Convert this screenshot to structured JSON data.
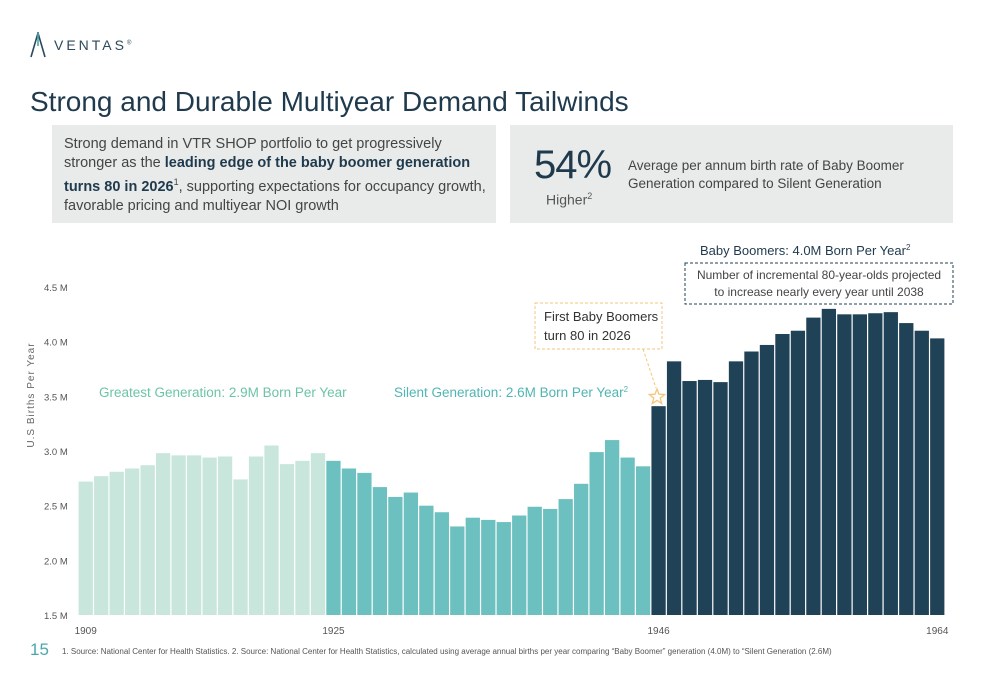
{
  "header": {
    "logo_text": "VENTAS",
    "logo_trademark": "®",
    "title": "Strong and Durable Multiyear Demand Tailwinds"
  },
  "left_box": {
    "text_1": "Strong demand in VTR SHOP portfolio to get progressively stronger as the ",
    "bold": "leading edge of the baby boomer generation turns 80 in 2026",
    "sup": "1",
    "text_2": ", supporting expectations for occupancy growth, favorable pricing and multiyear NOI growth"
  },
  "right_box": {
    "pct": "54%",
    "higher": "Higher",
    "higher_sup": "2",
    "desc": "Average per annum birth rate of Baby Boomer Generation compared to Silent Generation"
  },
  "colors": {
    "greatest": "#c8e6dc",
    "silent": "#6cc0bf",
    "boomers": "#1f4257",
    "greatest_label": "#6cc4a8",
    "silent_label": "#4fb6b3",
    "annotation_border": "#f5c67a",
    "dashed_border": "#1f4257"
  },
  "chart_data": {
    "type": "bar",
    "ylabel": "U.S Births Per Year",
    "ylim": [
      1.5,
      4.5
    ],
    "y_ticks": [
      "1.5 M",
      "2.0 M",
      "2.5 M",
      "3.0 M",
      "3.5 M",
      "4.0 M",
      "4.5 M"
    ],
    "x_tick_labels": [
      "1909",
      "1925",
      "1946",
      "1964"
    ],
    "x": [
      1909,
      1910,
      1911,
      1912,
      1913,
      1914,
      1915,
      1916,
      1917,
      1918,
      1919,
      1920,
      1921,
      1922,
      1923,
      1924,
      1925,
      1926,
      1927,
      1928,
      1929,
      1930,
      1931,
      1932,
      1933,
      1934,
      1935,
      1936,
      1937,
      1938,
      1939,
      1940,
      1941,
      1942,
      1943,
      1944,
      1945,
      1946,
      1947,
      1948,
      1949,
      1950,
      1951,
      1952,
      1953,
      1954,
      1955,
      1956,
      1957,
      1958,
      1959,
      1960,
      1961,
      1962,
      1963,
      1964
    ],
    "values": [
      2.72,
      2.77,
      2.81,
      2.84,
      2.87,
      2.98,
      2.96,
      2.96,
      2.94,
      2.95,
      2.74,
      2.95,
      3.05,
      2.88,
      2.91,
      2.98,
      2.91,
      2.84,
      2.8,
      2.67,
      2.58,
      2.62,
      2.5,
      2.44,
      2.31,
      2.39,
      2.37,
      2.35,
      2.41,
      2.49,
      2.47,
      2.56,
      2.7,
      2.99,
      3.1,
      2.94,
      2.86,
      3.41,
      3.82,
      3.64,
      3.65,
      3.63,
      3.82,
      3.91,
      3.97,
      4.07,
      4.1,
      4.22,
      4.3,
      4.25,
      4.25,
      4.26,
      4.27,
      4.17,
      4.1,
      4.03
    ],
    "series": [
      {
        "name": "Greatest Generation",
        "from": 1909,
        "to": 1924,
        "label": "Greatest Generation: 2.9M Born Per Year"
      },
      {
        "name": "Silent Generation",
        "from": 1925,
        "to": 1945,
        "label": "Silent Generation: 2.6M Born Per Year",
        "sup": "2"
      },
      {
        "name": "Baby Boomers",
        "from": 1946,
        "to": 1964,
        "label": "Baby Boomers: 4.0M Born Per Year",
        "sup": "2"
      }
    ],
    "annotations": {
      "first_boomers": "First Baby Boomers turn 80 in 2026",
      "incremental_line1": "Number of incremental 80-year-olds projected",
      "incremental_line2": "to increase nearly every year until 2038"
    }
  },
  "footer": {
    "page_number": "15",
    "footnote": "1. Source: National Center for Health Statistics. 2. Source: National Center for Health Statistics, calculated using average annual births per year comparing “Baby Boomer” generation (4.0M) to “Silent Generation (2.6M)"
  }
}
